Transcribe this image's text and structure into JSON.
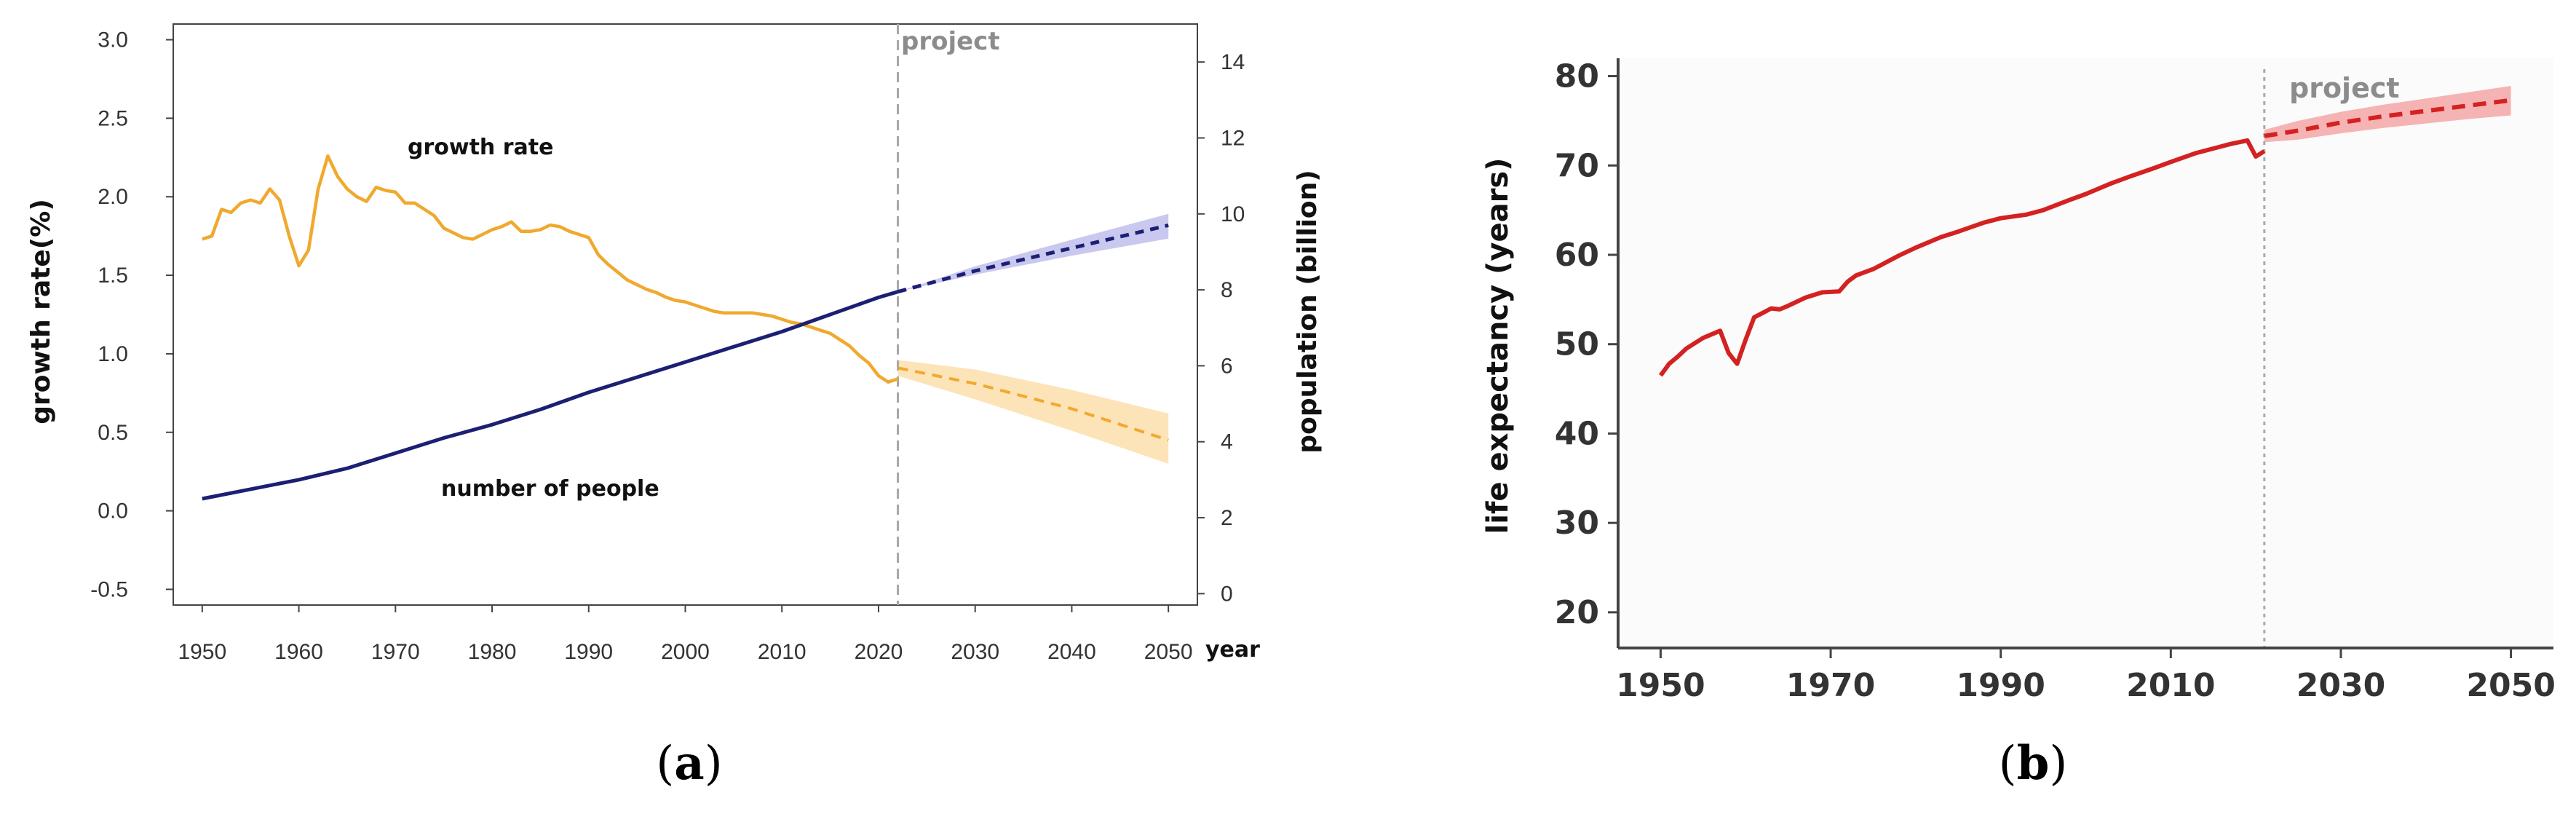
{
  "chart_data": [
    {
      "id": "a",
      "type": "line",
      "caption": {
        "open": "(",
        "letter": "a",
        "close": ")"
      },
      "x_ticks": [
        1950,
        1960,
        1970,
        1980,
        1990,
        2000,
        2010,
        2020,
        2030,
        2040,
        2050
      ],
      "xlabel": "year",
      "xlim": [
        1947,
        2053
      ],
      "left_axis": {
        "label": "growth rate(%)",
        "lim": [
          -0.6,
          3.1
        ],
        "ticks": [
          "-0.5",
          "0.0",
          "0.5",
          "1.0",
          "1.5",
          "2.0",
          "2.5",
          "3.0"
        ]
      },
      "right_axis": {
        "label": "population (billion)",
        "lim": [
          -0.3,
          15
        ],
        "ticks": [
          "0",
          "2",
          "4",
          "6",
          "8",
          "10",
          "12",
          "14"
        ]
      },
      "project_marker": {
        "x": 2022,
        "label": "project"
      },
      "annotations": {
        "growth": "growth rate",
        "people": "number of people"
      },
      "colors": {
        "growth": "#f0a92e",
        "growth_band": "#fde3b8",
        "population": "#1c1f73",
        "population_band": "#c9c9ef",
        "marker": "#a8a8a8"
      },
      "series": [
        {
          "name": "growth rate",
          "axis": "left",
          "x": [
            1950,
            1951,
            1952,
            1953,
            1954,
            1955,
            1956,
            1957,
            1958,
            1959,
            1960,
            1961,
            1962,
            1963,
            1964,
            1965,
            1966,
            1967,
            1968,
            1969,
            1970,
            1971,
            1972,
            1973,
            1974,
            1975,
            1976,
            1977,
            1978,
            1979,
            1980,
            1981,
            1982,
            1983,
            1984,
            1985,
            1986,
            1987,
            1988,
            1989,
            1990,
            1991,
            1992,
            1993,
            1994,
            1995,
            1996,
            1997,
            1998,
            1999,
            2000,
            2001,
            2002,
            2003,
            2004,
            2005,
            2006,
            2007,
            2008,
            2009,
            2010,
            2011,
            2012,
            2013,
            2014,
            2015,
            2016,
            2017,
            2018,
            2019,
            2020,
            2021,
            2022
          ],
          "values": [
            1.73,
            1.75,
            1.92,
            1.9,
            1.96,
            1.98,
            1.96,
            2.05,
            1.98,
            1.75,
            1.56,
            1.66,
            2.05,
            2.26,
            2.13,
            2.05,
            2.0,
            1.97,
            2.06,
            2.04,
            2.03,
            1.96,
            1.96,
            1.92,
            1.88,
            1.8,
            1.77,
            1.74,
            1.73,
            1.76,
            1.79,
            1.81,
            1.84,
            1.78,
            1.78,
            1.79,
            1.82,
            1.81,
            1.78,
            1.76,
            1.74,
            1.63,
            1.57,
            1.52,
            1.47,
            1.44,
            1.41,
            1.39,
            1.36,
            1.34,
            1.33,
            1.31,
            1.29,
            1.27,
            1.26,
            1.26,
            1.26,
            1.26,
            1.25,
            1.24,
            1.22,
            1.2,
            1.19,
            1.17,
            1.15,
            1.13,
            1.09,
            1.05,
            0.99,
            0.94,
            0.86,
            0.82,
            0.84
          ]
        },
        {
          "name": "growth rate projection",
          "axis": "left",
          "style": "dashed",
          "x": [
            2022,
            2030,
            2040,
            2050
          ],
          "values": [
            0.91,
            0.81,
            0.65,
            0.45
          ],
          "band_lower": [
            0.86,
            0.71,
            0.51,
            0.3
          ],
          "band_upper": [
            0.96,
            0.9,
            0.77,
            0.62
          ]
        },
        {
          "name": "number of people",
          "axis": "right",
          "x": [
            1950,
            1955,
            1960,
            1965,
            1970,
            1975,
            1980,
            1985,
            1990,
            1995,
            2000,
            2005,
            2010,
            2015,
            2020,
            2022
          ],
          "values": [
            2.5,
            2.75,
            3.0,
            3.3,
            3.7,
            4.1,
            4.45,
            4.85,
            5.3,
            5.7,
            6.1,
            6.5,
            6.9,
            7.35,
            7.8,
            7.95
          ]
        },
        {
          "name": "number of people projection",
          "axis": "right",
          "style": "dashed",
          "x": [
            2022,
            2030,
            2040,
            2050
          ],
          "values": [
            7.95,
            8.5,
            9.1,
            9.7
          ],
          "band_lower": [
            7.95,
            8.4,
            8.9,
            9.35
          ],
          "band_upper": [
            7.95,
            8.62,
            9.32,
            10.0
          ]
        }
      ]
    },
    {
      "id": "b",
      "type": "line",
      "caption": {
        "open": "(",
        "letter": "b",
        "close": ")"
      },
      "x_ticks": [
        1950,
        1970,
        1990,
        2010,
        2030,
        2050
      ],
      "xlim": [
        1945,
        2055
      ],
      "ylabel": "life expectancy (years)",
      "ylim": [
        16,
        82
      ],
      "y_ticks": [
        "20",
        "30",
        "40",
        "50",
        "60",
        "70",
        "80"
      ],
      "project_marker": {
        "x": 2021,
        "label": "project"
      },
      "colors": {
        "line": "#d42121",
        "band": "#f6b3b3",
        "marker": "#a8a8a8",
        "frame": "#444444"
      },
      "series": [
        {
          "name": "life expectancy",
          "x": [
            1950,
            1951,
            1952,
            1953,
            1954,
            1955,
            1956,
            1957,
            1958,
            1959,
            1960,
            1961,
            1962,
            1963,
            1964,
            1965,
            1967,
            1969,
            1971,
            1972,
            1973,
            1975,
            1978,
            1980,
            1983,
            1985,
            1988,
            1990,
            1993,
            1995,
            1998,
            2000,
            2003,
            2005,
            2008,
            2010,
            2013,
            2015,
            2017,
            2019,
            2020,
            2021
          ],
          "values": [
            46.5,
            47.8,
            48.6,
            49.5,
            50.1,
            50.7,
            51.1,
            51.5,
            49.0,
            47.8,
            50.5,
            53.0,
            53.5,
            54.0,
            53.9,
            54.3,
            55.2,
            55.8,
            55.9,
            57.0,
            57.7,
            58.4,
            59.9,
            60.8,
            62.0,
            62.6,
            63.6,
            64.1,
            64.5,
            65.0,
            66.1,
            66.8,
            68.0,
            68.7,
            69.7,
            70.4,
            71.4,
            71.9,
            72.4,
            72.8,
            71.0,
            71.6
          ]
        },
        {
          "name": "life expectancy projection",
          "style": "dashed",
          "x": [
            2021,
            2025,
            2030,
            2035,
            2040,
            2045,
            2050
          ],
          "values": [
            73.3,
            73.9,
            74.8,
            75.5,
            76.1,
            76.7,
            77.3
          ],
          "band_lower": [
            72.6,
            72.9,
            73.6,
            74.2,
            74.7,
            75.2,
            75.6
          ],
          "band_upper": [
            74.0,
            75.0,
            76.0,
            76.8,
            77.5,
            78.2,
            78.9
          ]
        }
      ]
    }
  ]
}
